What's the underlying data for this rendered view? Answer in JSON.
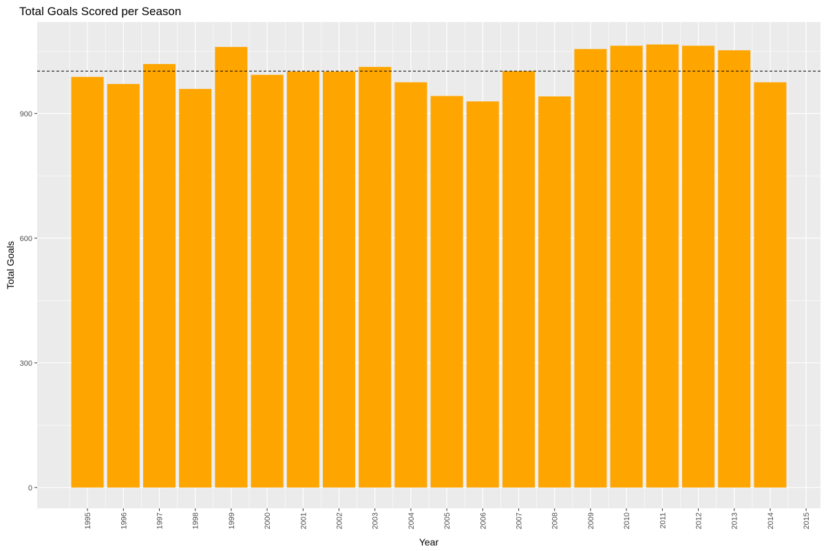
{
  "chart_data": {
    "type": "bar",
    "title": "Total Goals Scored per Season",
    "xlabel": "Year",
    "ylabel": "Total Goals",
    "categories": [
      "1995",
      "1996",
      "1997",
      "1998",
      "1999",
      "2000",
      "2001",
      "2002",
      "2003",
      "2004",
      "2005",
      "2006",
      "2007",
      "2008",
      "2009",
      "2010",
      "2011",
      "2012",
      "2013",
      "2014"
    ],
    "x_tick_labels": [
      "1995",
      "1996",
      "1997",
      "1998",
      "1999",
      "2000",
      "2001",
      "2002",
      "2003",
      "2004",
      "2005",
      "2006",
      "2007",
      "2008",
      "2009",
      "2010",
      "2011",
      "2012",
      "2013",
      "2014",
      "2015"
    ],
    "values": [
      988,
      971,
      1019,
      959,
      1060,
      993,
      1001,
      1001,
      1012,
      975,
      942,
      929,
      1002,
      941,
      1055,
      1063,
      1066,
      1063,
      1052,
      975
    ],
    "y_ticks": [
      0,
      300,
      600,
      900
    ],
    "ylim": [
      -50,
      1120
    ],
    "xlim": [
      1993.6,
      2015.4
    ],
    "reference_line": {
      "value": 1002,
      "style": "dashed",
      "color": "#000000"
    },
    "bar_color": "#FFA500",
    "panel_background": "#EBEBEB",
    "grid_color": "#FFFFFF",
    "grid": true,
    "legend": "none"
  }
}
